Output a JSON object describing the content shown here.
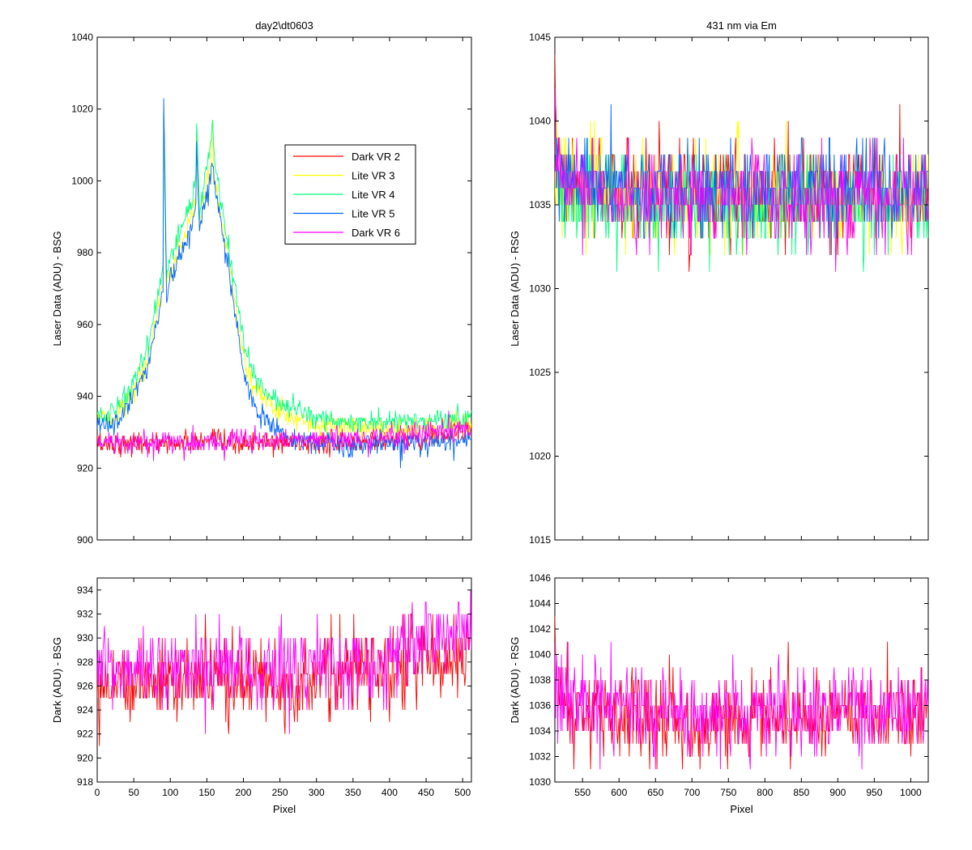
{
  "chart_data": [
    {
      "id": "top-left",
      "type": "line",
      "title": "day2\\dt0603",
      "xlabel": "",
      "ylabel": "Laser Data (ADU) - BSG",
      "xlim": [
        0,
        512
      ],
      "ylim": [
        900,
        1040
      ],
      "xticks": [
        0,
        50,
        100,
        150,
        200,
        250,
        300,
        350,
        400,
        450,
        500
      ],
      "yticks": [
        900,
        920,
        940,
        960,
        980,
        1000,
        1020,
        1040
      ],
      "show_xtick_labels": false,
      "legend": {
        "placement": "upper-middle"
      },
      "series": [
        {
          "name": "Dark VR 2",
          "color": "#ff0000",
          "x": [
            0,
            25,
            50,
            75,
            100,
            125,
            150,
            175,
            200,
            225,
            250,
            275,
            300,
            325,
            350,
            375,
            400,
            425,
            450,
            475,
            500,
            512
          ],
          "y": [
            927,
            927,
            927,
            927,
            927,
            927,
            927,
            927,
            927,
            927,
            927,
            927,
            927,
            927,
            927,
            928,
            928,
            928,
            929,
            929,
            930,
            930
          ]
        },
        {
          "name": "Lite VR 3",
          "color": "#ffff00",
          "x": [
            0,
            10,
            20,
            30,
            40,
            50,
            60,
            70,
            80,
            90,
            91,
            95,
            100,
            110,
            120,
            130,
            135,
            136,
            140,
            145,
            150,
            155,
            158,
            160,
            170,
            180,
            190,
            200,
            210,
            220,
            230,
            240,
            250,
            260,
            270,
            280,
            290,
            300,
            320,
            340,
            360,
            380,
            400,
            420,
            440,
            460,
            480,
            500,
            512
          ],
          "y": [
            935,
            933,
            934,
            936,
            938,
            941,
            945,
            950,
            961,
            972,
            1015,
            970,
            975,
            980,
            985,
            990,
            995,
            1016,
            988,
            994,
            1000,
            1005,
            1016,
            1002,
            990,
            977,
            965,
            951,
            945,
            941,
            939,
            937,
            936,
            935,
            934,
            934,
            933,
            932,
            932,
            931,
            931,
            931,
            931,
            931,
            931,
            931,
            932,
            932,
            932
          ]
        },
        {
          "name": "Lite VR 4",
          "color": "#00ff7f",
          "x": [
            0,
            10,
            20,
            30,
            40,
            50,
            60,
            70,
            80,
            90,
            91,
            95,
            100,
            110,
            120,
            130,
            135,
            136,
            140,
            145,
            150,
            155,
            158,
            160,
            170,
            180,
            190,
            200,
            210,
            220,
            230,
            240,
            250,
            260,
            270,
            280,
            290,
            300,
            320,
            340,
            360,
            380,
            400,
            420,
            440,
            460,
            480,
            500,
            512
          ],
          "y": [
            936,
            935,
            936,
            938,
            941,
            944,
            949,
            955,
            965,
            976,
            1020,
            975,
            978,
            983,
            989,
            995,
            1000,
            1017,
            992,
            998,
            1004,
            1009,
            1017,
            1006,
            994,
            981,
            968,
            955,
            948,
            944,
            941,
            939,
            938,
            937,
            936,
            936,
            935,
            934,
            934,
            933,
            933,
            933,
            933,
            933,
            933,
            933,
            933,
            934,
            934
          ]
        },
        {
          "name": "Lite VR 5",
          "color": "#0064ff",
          "x": [
            0,
            10,
            20,
            30,
            40,
            50,
            60,
            70,
            80,
            90,
            91,
            95,
            100,
            110,
            120,
            130,
            135,
            136,
            140,
            145,
            150,
            155,
            158,
            160,
            170,
            180,
            190,
            200,
            210,
            220,
            230,
            240,
            250,
            260,
            270,
            280,
            290,
            300,
            320,
            340,
            360,
            380,
            400,
            420,
            440,
            460,
            480,
            500,
            512
          ],
          "y": [
            932,
            931,
            932,
            934,
            937,
            940,
            944,
            949,
            959,
            970,
            1022,
            966,
            972,
            977,
            982,
            988,
            993,
            1010,
            986,
            992,
            997,
            1002,
            1006,
            1000,
            988,
            975,
            961,
            947,
            940,
            936,
            933,
            931,
            930,
            929,
            928,
            928,
            927,
            927,
            927,
            926,
            926,
            927,
            927,
            927,
            927,
            927,
            928,
            928,
            928
          ]
        },
        {
          "name": "Dark VR 6",
          "color": "#ff00ff",
          "x": [
            0,
            25,
            50,
            75,
            100,
            125,
            150,
            175,
            200,
            225,
            250,
            275,
            300,
            325,
            350,
            375,
            400,
            425,
            450,
            475,
            500,
            512
          ],
          "y": [
            927,
            927,
            927,
            927,
            927,
            927,
            927,
            927,
            928,
            928,
            928,
            928,
            928,
            928,
            928,
            928,
            929,
            929,
            930,
            930,
            931,
            931
          ]
        }
      ]
    },
    {
      "id": "top-right",
      "type": "line",
      "title": "431 nm via Em",
      "xlabel": "",
      "ylabel": "Laser Data (ADU) - RSG",
      "xlim": [
        512,
        1024
      ],
      "ylim": [
        1015,
        1045
      ],
      "xticks": [
        550,
        600,
        650,
        700,
        750,
        800,
        850,
        900,
        950,
        1000
      ],
      "yticks": [
        1015,
        1020,
        1025,
        1030,
        1035,
        1040,
        1045
      ],
      "show_xtick_labels": false,
      "series": [
        {
          "name": "Dark VR 2",
          "color": "#ff0000",
          "x": [
            512,
            514,
            518,
            525,
            550,
            600,
            650,
            700,
            750,
            800,
            850,
            900,
            950,
            1000,
            1024
          ],
          "y": [
            1044,
            1039,
            1037,
            1036,
            1036,
            1035.5,
            1035.5,
            1035.5,
            1035.5,
            1035.5,
            1035.5,
            1035.5,
            1035.5,
            1035.5,
            1035.5
          ]
        },
        {
          "name": "Lite VR 3",
          "color": "#ffff00",
          "x": [
            512,
            518,
            525,
            550,
            600,
            650,
            700,
            750,
            800,
            850,
            900,
            950,
            1000,
            1024
          ],
          "y": [
            1038,
            1036.5,
            1036,
            1036,
            1035.5,
            1035.5,
            1035.5,
            1035.5,
            1035.5,
            1035.5,
            1035.5,
            1035.5,
            1035.5,
            1035.5
          ]
        },
        {
          "name": "Lite VR 4",
          "color": "#00ff7f",
          "x": [
            512,
            518,
            525,
            550,
            600,
            650,
            700,
            750,
            800,
            850,
            900,
            950,
            1000,
            1024
          ],
          "y": [
            1037.5,
            1036,
            1035.5,
            1035.5,
            1035,
            1035,
            1035,
            1035,
            1035,
            1035,
            1035,
            1035,
            1035,
            1035
          ]
        },
        {
          "name": "Lite VR 5",
          "color": "#0064ff",
          "x": [
            512,
            518,
            525,
            550,
            600,
            650,
            700,
            750,
            800,
            850,
            900,
            950,
            1000,
            1024
          ],
          "y": [
            1038,
            1037,
            1036.5,
            1036.5,
            1036,
            1036,
            1036,
            1036,
            1036,
            1036,
            1036,
            1036,
            1036,
            1036
          ]
        },
        {
          "name": "Dark VR 6",
          "color": "#ff00ff",
          "x": [
            512,
            514,
            518,
            525,
            550,
            600,
            650,
            700,
            750,
            800,
            850,
            900,
            950,
            1000,
            1024
          ],
          "y": [
            1041,
            1038,
            1037,
            1036,
            1036,
            1035.5,
            1035.5,
            1035.5,
            1035.5,
            1035.5,
            1035.5,
            1035.5,
            1035.5,
            1035.5,
            1035.5
          ]
        }
      ]
    },
    {
      "id": "bottom-left",
      "type": "line",
      "title": "",
      "xlabel": "Pixel",
      "ylabel": "Dark (ADU) - BSG",
      "xlim": [
        0,
        512
      ],
      "ylim": [
        918,
        935
      ],
      "xticks": [
        0,
        50,
        100,
        150,
        200,
        250,
        300,
        350,
        400,
        450,
        500
      ],
      "yticks": [
        918,
        920,
        922,
        924,
        926,
        928,
        930,
        932,
        934
      ],
      "show_xtick_labels": true,
      "series": [
        {
          "name": "Dark VR 2",
          "color": "#ff0000",
          "x": [
            0,
            25,
            50,
            75,
            100,
            125,
            150,
            175,
            200,
            225,
            250,
            275,
            300,
            325,
            350,
            375,
            400,
            425,
            450,
            475,
            500,
            512
          ],
          "y": [
            926.5,
            926.5,
            926.5,
            926.5,
            926.5,
            926.5,
            926.5,
            926.5,
            926.5,
            926.5,
            926.5,
            926.5,
            926.5,
            927,
            927,
            927,
            927.5,
            928,
            928,
            928.5,
            929,
            929
          ]
        },
        {
          "name": "Dark VR 6",
          "color": "#ff00ff",
          "x": [
            0,
            25,
            50,
            75,
            100,
            125,
            150,
            175,
            200,
            225,
            250,
            275,
            300,
            325,
            350,
            375,
            400,
            425,
            450,
            475,
            500,
            512
          ],
          "y": [
            927,
            927,
            927.5,
            927.5,
            927.5,
            927.5,
            927.5,
            927.5,
            927.5,
            927.5,
            927.5,
            927.5,
            927.5,
            928,
            928,
            928,
            928.5,
            929,
            929.5,
            930,
            930.5,
            930.5
          ]
        }
      ]
    },
    {
      "id": "bottom-right",
      "type": "line",
      "title": "",
      "xlabel": "Pixel",
      "ylabel": "Dark (ADU) - RSG",
      "xlim": [
        512,
        1024
      ],
      "ylim": [
        1030,
        1046
      ],
      "xticks": [
        550,
        600,
        650,
        700,
        750,
        800,
        850,
        900,
        950,
        1000
      ],
      "yticks": [
        1030,
        1032,
        1034,
        1036,
        1038,
        1040,
        1042,
        1044,
        1046
      ],
      "show_xtick_labels": true,
      "series": [
        {
          "name": "Dark VR 2",
          "color": "#ff0000",
          "x": [
            512,
            514,
            518,
            525,
            550,
            600,
            650,
            700,
            750,
            800,
            850,
            900,
            950,
            1000,
            1024
          ],
          "y": [
            1044,
            1039,
            1037,
            1036,
            1035.5,
            1035.2,
            1035,
            1035,
            1035,
            1035,
            1035,
            1035.2,
            1035.3,
            1035.5,
            1035.5
          ]
        },
        {
          "name": "Dark VR 6",
          "color": "#ff00ff",
          "x": [
            512,
            514,
            518,
            525,
            550,
            600,
            650,
            700,
            750,
            800,
            850,
            900,
            950,
            1000,
            1024
          ],
          "y": [
            1041,
            1038,
            1037,
            1036.5,
            1036,
            1035.8,
            1035.5,
            1035.5,
            1035.5,
            1035.5,
            1035.5,
            1035.7,
            1035.8,
            1036,
            1036
          ]
        }
      ]
    }
  ]
}
